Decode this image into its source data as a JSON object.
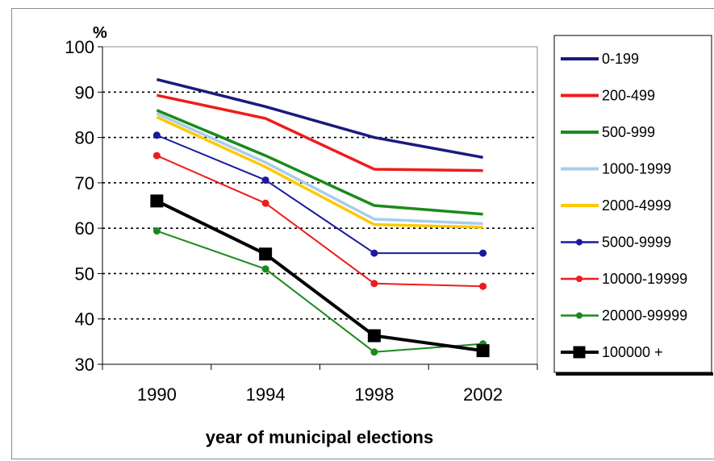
{
  "chart_data": {
    "type": "line",
    "title": "",
    "xlabel": "year of municipal elections",
    "ylabel": "%",
    "ylim": [
      30,
      100
    ],
    "yticks": [
      "30",
      "40",
      "50",
      "60",
      "70",
      "80",
      "90",
      "100"
    ],
    "categories": [
      "1990",
      "1994",
      "1998",
      "2002"
    ],
    "grid": "horizontal dotted",
    "legend_position": "right",
    "series": [
      {
        "name": "0-199",
        "color": "#1a1a80",
        "marker": "none",
        "values": [
          92.8,
          86.8,
          80.0,
          75.6
        ]
      },
      {
        "name": "200-499",
        "color": "#ee1c1c",
        "marker": "none",
        "values": [
          89.3,
          84.2,
          73.0,
          72.7
        ]
      },
      {
        "name": "500-999",
        "color": "#1b8a1b",
        "marker": "none",
        "values": [
          86.0,
          76.0,
          65.0,
          63.1
        ]
      },
      {
        "name": "1000-1999",
        "color": "#a8cdea",
        "marker": "none",
        "values": [
          85.3,
          74.5,
          62.0,
          61.0
        ]
      },
      {
        "name": "2000-4999",
        "color": "#ffc800",
        "marker": "none",
        "values": [
          84.5,
          73.5,
          60.8,
          60.2
        ]
      },
      {
        "name": "5000-9999",
        "color": "#1a1a9e",
        "marker": "circle",
        "values": [
          80.5,
          70.6,
          54.5,
          54.5
        ]
      },
      {
        "name": "10000-19999",
        "color": "#ee1c1c",
        "marker": "circle",
        "values": [
          76.0,
          65.5,
          47.8,
          47.2
        ]
      },
      {
        "name": "20000-99999",
        "color": "#1b8a1b",
        "marker": "circle",
        "values": [
          59.4,
          51.0,
          32.7,
          34.5
        ]
      },
      {
        "name": "100000 +",
        "color": "#000000",
        "marker": "square",
        "values": [
          66.0,
          54.3,
          36.3,
          33.0
        ]
      }
    ]
  }
}
